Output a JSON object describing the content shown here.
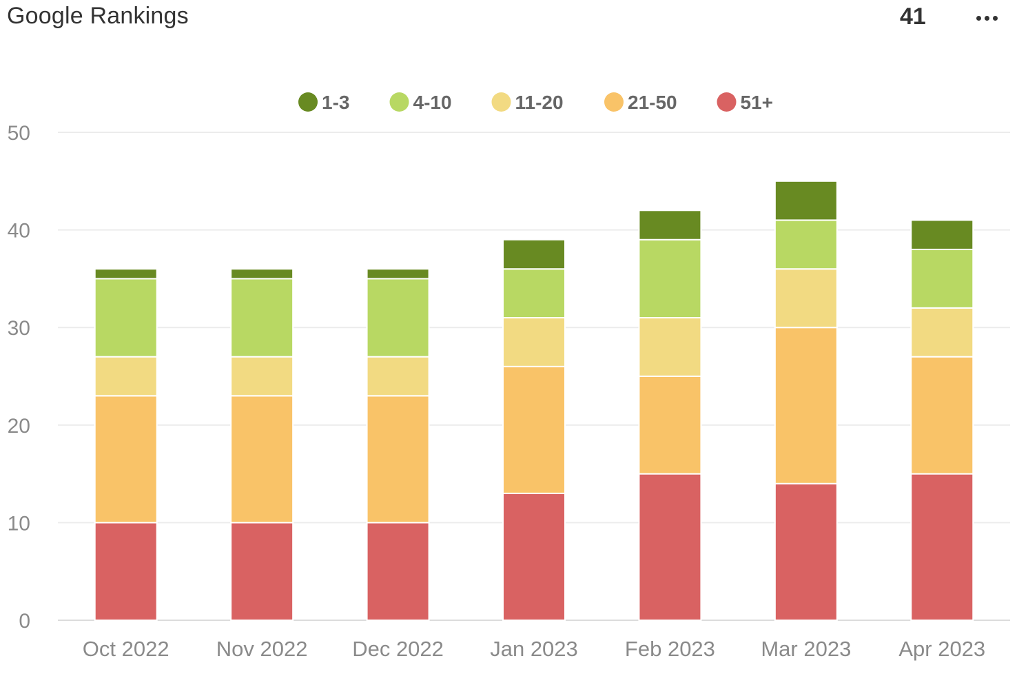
{
  "widget": {
    "title": "Google Rankings",
    "total": "41",
    "more_icon": "ellipsis-icon"
  },
  "chart_data": {
    "type": "bar",
    "stacked": true,
    "categories": [
      "Oct 2022",
      "Nov 2022",
      "Dec 2022",
      "Jan 2023",
      "Feb 2023",
      "Mar 2023",
      "Apr 2023"
    ],
    "series": [
      {
        "name": "51+",
        "color": "#d96262",
        "values": [
          10,
          10,
          10,
          13,
          15,
          14,
          15
        ]
      },
      {
        "name": "21-50",
        "color": "#f9c368",
        "values": [
          13,
          13,
          13,
          13,
          10,
          16,
          12
        ]
      },
      {
        "name": "11-20",
        "color": "#f2da82",
        "values": [
          4,
          4,
          4,
          5,
          6,
          6,
          5
        ]
      },
      {
        "name": "4-10",
        "color": "#b8d863",
        "values": [
          8,
          8,
          8,
          5,
          8,
          5,
          6
        ]
      },
      {
        "name": "1-3",
        "color": "#688a22",
        "values": [
          1,
          1,
          1,
          3,
          3,
          4,
          3
        ]
      }
    ],
    "legend_order": [
      "1-3",
      "4-10",
      "11-20",
      "21-50",
      "51+"
    ],
    "legend_position": "top-center",
    "ylim": [
      0,
      50
    ],
    "yticks": [
      0,
      10,
      20,
      30,
      40,
      50
    ],
    "grid": true,
    "title": "",
    "xlabel": "",
    "ylabel": ""
  }
}
